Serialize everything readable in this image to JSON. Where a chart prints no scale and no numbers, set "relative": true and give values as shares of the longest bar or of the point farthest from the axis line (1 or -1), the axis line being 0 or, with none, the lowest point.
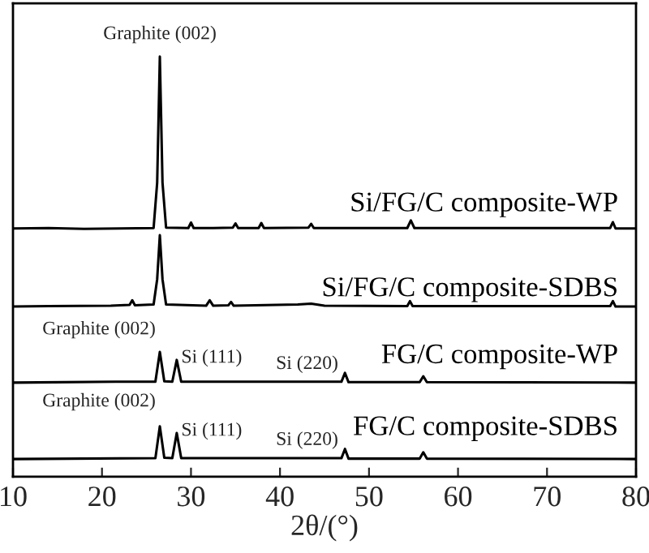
{
  "chart_data": {
    "type": "line",
    "relative": true,
    "xlabel": "2θ/(°)",
    "xlim": [
      10,
      80
    ],
    "xticks": [
      10,
      20,
      30,
      40,
      50,
      60,
      70,
      80
    ],
    "tick_labels": "x",
    "grid": false,
    "legend": false,
    "marker": "none",
    "line_style": "solid",
    "series": [
      {
        "name": "Si/FG/C composite-WP",
        "color": "#000000",
        "x": [
          10,
          14,
          18,
          22,
          25.8,
          26.2,
          26.5,
          26.8,
          27.2,
          29.7,
          30.0,
          30.3,
          32.5,
          34.7,
          35.0,
          35.3,
          37.6,
          37.9,
          38.2,
          43.2,
          43.5,
          43.8,
          54.3,
          54.7,
          55.1,
          77.1,
          77.4,
          77.7,
          80
        ],
        "values": [
          0.591,
          0.592,
          0.59,
          0.591,
          0.592,
          0.7,
          1.0,
          0.7,
          0.593,
          0.592,
          0.605,
          0.592,
          0.592,
          0.593,
          0.603,
          0.592,
          0.592,
          0.604,
          0.592,
          0.593,
          0.602,
          0.592,
          0.592,
          0.61,
          0.592,
          0.592,
          0.606,
          0.591,
          0.591
        ]
      },
      {
        "name": "Si/FG/C composite-SDBS",
        "color": "#000000",
        "x": [
          10,
          14,
          21,
          23.1,
          23.4,
          23.7,
          25.8,
          26.2,
          26.5,
          26.8,
          27.2,
          31.7,
          32.1,
          32.5,
          34.2,
          34.5,
          34.8,
          42,
          43.5,
          45,
          54.3,
          54.6,
          54.9,
          77.1,
          77.4,
          77.7,
          80
        ],
        "values": [
          0.405,
          0.406,
          0.407,
          0.409,
          0.42,
          0.408,
          0.41,
          0.47,
          0.575,
          0.47,
          0.41,
          0.407,
          0.42,
          0.407,
          0.408,
          0.416,
          0.407,
          0.41,
          0.412,
          0.407,
          0.406,
          0.418,
          0.406,
          0.406,
          0.418,
          0.405,
          0.405
        ]
      },
      {
        "name": "FG/C composite-WP",
        "color": "#000000",
        "x": [
          10,
          21.5,
          26.0,
          26.5,
          27.0,
          27.9,
          28.4,
          28.9,
          46.9,
          47.3,
          47.7,
          55.7,
          56.1,
          56.5,
          80
        ],
        "values": [
          0.224,
          0.226,
          0.226,
          0.297,
          0.227,
          0.226,
          0.278,
          0.226,
          0.226,
          0.247,
          0.225,
          0.225,
          0.239,
          0.225,
          0.224
        ]
      },
      {
        "name": "FG/C composite-SDBS",
        "color": "#000000",
        "x": [
          10,
          26.0,
          26.5,
          27.0,
          27.9,
          28.4,
          28.9,
          46.9,
          47.3,
          47.7,
          55.7,
          56.1,
          56.5,
          80
        ],
        "values": [
          0.042,
          0.044,
          0.12,
          0.045,
          0.044,
          0.104,
          0.044,
          0.044,
          0.066,
          0.043,
          0.043,
          0.058,
          0.043,
          0.042
        ]
      }
    ],
    "annotations": [
      {
        "text": "Graphite (002)",
        "x": 26.5,
        "y": 1.0
      },
      {
        "text": "Graphite (002)",
        "x": 26.5,
        "y": 0.297
      },
      {
        "text": "Si (111)",
        "x": 28.4,
        "y": 0.278
      },
      {
        "text": "Si (220)",
        "x": 47.3,
        "y": 0.247
      },
      {
        "text": "Graphite (002)",
        "x": 26.5,
        "y": 0.12
      },
      {
        "text": "Si (111)",
        "x": 28.4,
        "y": 0.104
      },
      {
        "text": "Si (220)",
        "x": 47.3,
        "y": 0.066
      }
    ]
  }
}
